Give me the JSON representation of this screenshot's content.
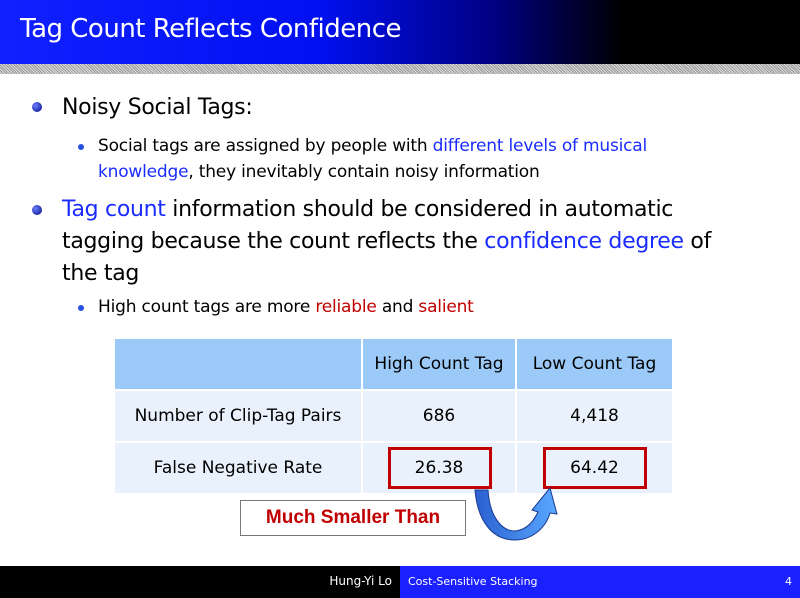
{
  "title": "Tag Count Reflects Confidence",
  "bullets": {
    "b1": "Noisy Social Tags:",
    "b1a_pre": "Social tags are assigned by people with ",
    "b1a_hl": "different levels of musical knowledge",
    "b1a_post": ", they inevitably contain noisy information",
    "b2_hl1": "Tag count",
    "b2_mid": " information should be considered in automatic tagging because the count reflects the ",
    "b2_hl2": "confidence degree",
    "b2_post": " of the tag",
    "b2a_pre": "High count tags are more ",
    "b2a_hl1": "reliable",
    "b2a_mid": " and ",
    "b2a_hl2": "salient"
  },
  "table": {
    "headers": [
      "",
      "High Count Tag",
      "Low Count Tag"
    ],
    "rows": [
      [
        "Number of Clip-Tag Pairs",
        "686",
        "4,418"
      ],
      [
        "False Negative Rate",
        "26.38",
        "64.42"
      ]
    ]
  },
  "annotation": "Much Smaller Than",
  "footer": {
    "author": "Hung-Yi Lo",
    "talk": "Cost-Sensitive Stacking",
    "page": "4"
  },
  "colors": {
    "accent": "#1a2cff",
    "highlight_red": "#c00000",
    "header_cell": "#9ccaf8",
    "body_cell": "#e9f2fc"
  }
}
